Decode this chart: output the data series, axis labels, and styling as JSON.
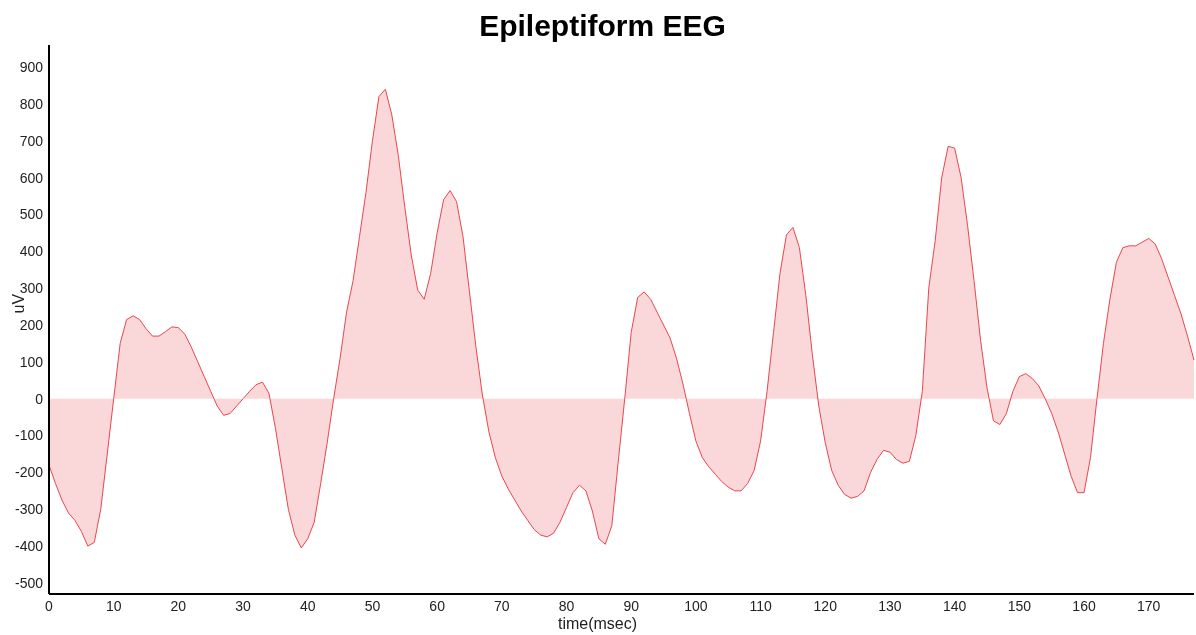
{
  "chart_data": {
    "type": "area",
    "title": "Epileptiform EEG",
    "xlabel": "time(msec)",
    "ylabel": "uV",
    "xlim": [
      0,
      177
    ],
    "xticks": [
      0,
      10,
      20,
      30,
      40,
      50,
      60,
      70,
      80,
      90,
      100,
      110,
      120,
      130,
      140,
      150,
      160,
      170
    ],
    "ylim": [
      -530,
      960
    ],
    "yticks": [
      -500,
      -400,
      -300,
      -200,
      -100,
      0,
      100,
      200,
      300,
      400,
      500,
      600,
      700,
      800,
      900
    ],
    "grid": false,
    "series": [
      {
        "color": "#e8474e",
        "x": [
          0,
          1,
          2,
          3,
          4,
          5,
          6,
          7,
          8,
          9,
          10,
          11,
          12,
          13,
          14,
          15,
          16,
          17,
          18,
          19,
          20,
          21,
          22,
          23,
          24,
          25,
          26,
          27,
          28,
          29,
          30,
          31,
          32,
          33,
          34,
          35,
          36,
          37,
          38,
          39,
          40,
          41,
          42,
          43,
          44,
          45,
          46,
          47,
          48,
          49,
          50,
          51,
          52,
          53,
          54,
          55,
          56,
          57,
          58,
          59,
          60,
          61,
          62,
          63,
          64,
          65,
          66,
          67,
          68,
          69,
          70,
          71,
          72,
          73,
          74,
          75,
          76,
          77,
          78,
          79,
          80,
          81,
          82,
          83,
          84,
          85,
          86,
          87,
          88,
          89,
          90,
          91,
          92,
          93,
          94,
          95,
          96,
          97,
          98,
          99,
          100,
          101,
          102,
          103,
          104,
          105,
          106,
          107,
          108,
          109,
          110,
          111,
          112,
          113,
          114,
          115,
          116,
          117,
          118,
          119,
          120,
          121,
          122,
          123,
          124,
          125,
          126,
          127,
          128,
          129,
          130,
          131,
          132,
          133,
          134,
          135,
          136,
          137,
          138,
          139,
          140,
          141,
          142,
          143,
          144,
          145,
          146,
          147,
          148,
          149,
          150,
          151,
          152,
          153,
          154,
          155,
          156,
          157,
          158,
          159,
          160,
          161,
          162,
          163,
          164,
          165,
          166,
          167,
          168,
          169,
          170,
          171,
          172,
          173,
          174,
          175,
          176,
          177
        ],
        "values": [
          -180,
          -230,
          -275,
          -310,
          -330,
          -360,
          -400,
          -390,
          -300,
          -150,
          0,
          150,
          215,
          225,
          215,
          190,
          170,
          170,
          182,
          195,
          193,
          175,
          140,
          100,
          60,
          20,
          -20,
          -45,
          -40,
          -20,
          0,
          20,
          38,
          45,
          15,
          -80,
          -190,
          -300,
          -370,
          -405,
          -380,
          -335,
          -230,
          -120,
          0,
          110,
          235,
          320,
          440,
          560,
          700,
          820,
          840,
          770,
          660,
          520,
          390,
          295,
          270,
          340,
          450,
          540,
          565,
          535,
          440,
          290,
          140,
          10,
          -90,
          -160,
          -210,
          -245,
          -275,
          -305,
          -330,
          -355,
          -370,
          -375,
          -365,
          -335,
          -295,
          -255,
          -235,
          -250,
          -305,
          -380,
          -395,
          -345,
          -170,
          0,
          180,
          275,
          290,
          270,
          235,
          200,
          165,
          110,
          40,
          -40,
          -115,
          -160,
          -185,
          -205,
          -225,
          -240,
          -250,
          -250,
          -230,
          -195,
          -115,
          20,
          180,
          340,
          445,
          465,
          410,
          280,
          120,
          -20,
          -120,
          -195,
          -235,
          -260,
          -270,
          -265,
          -250,
          -200,
          -165,
          -140,
          -145,
          -165,
          -175,
          -170,
          -100,
          20,
          300,
          430,
          600,
          685,
          680,
          600,
          470,
          320,
          160,
          30,
          -60,
          -70,
          -40,
          20,
          60,
          68,
          55,
          35,
          0,
          -40,
          -90,
          -150,
          -210,
          -255,
          -255,
          -160,
          0,
          150,
          270,
          370,
          410,
          415,
          415,
          425,
          435,
          420,
          380,
          330,
          280,
          230,
          170,
          105
        ]
      }
    ]
  }
}
